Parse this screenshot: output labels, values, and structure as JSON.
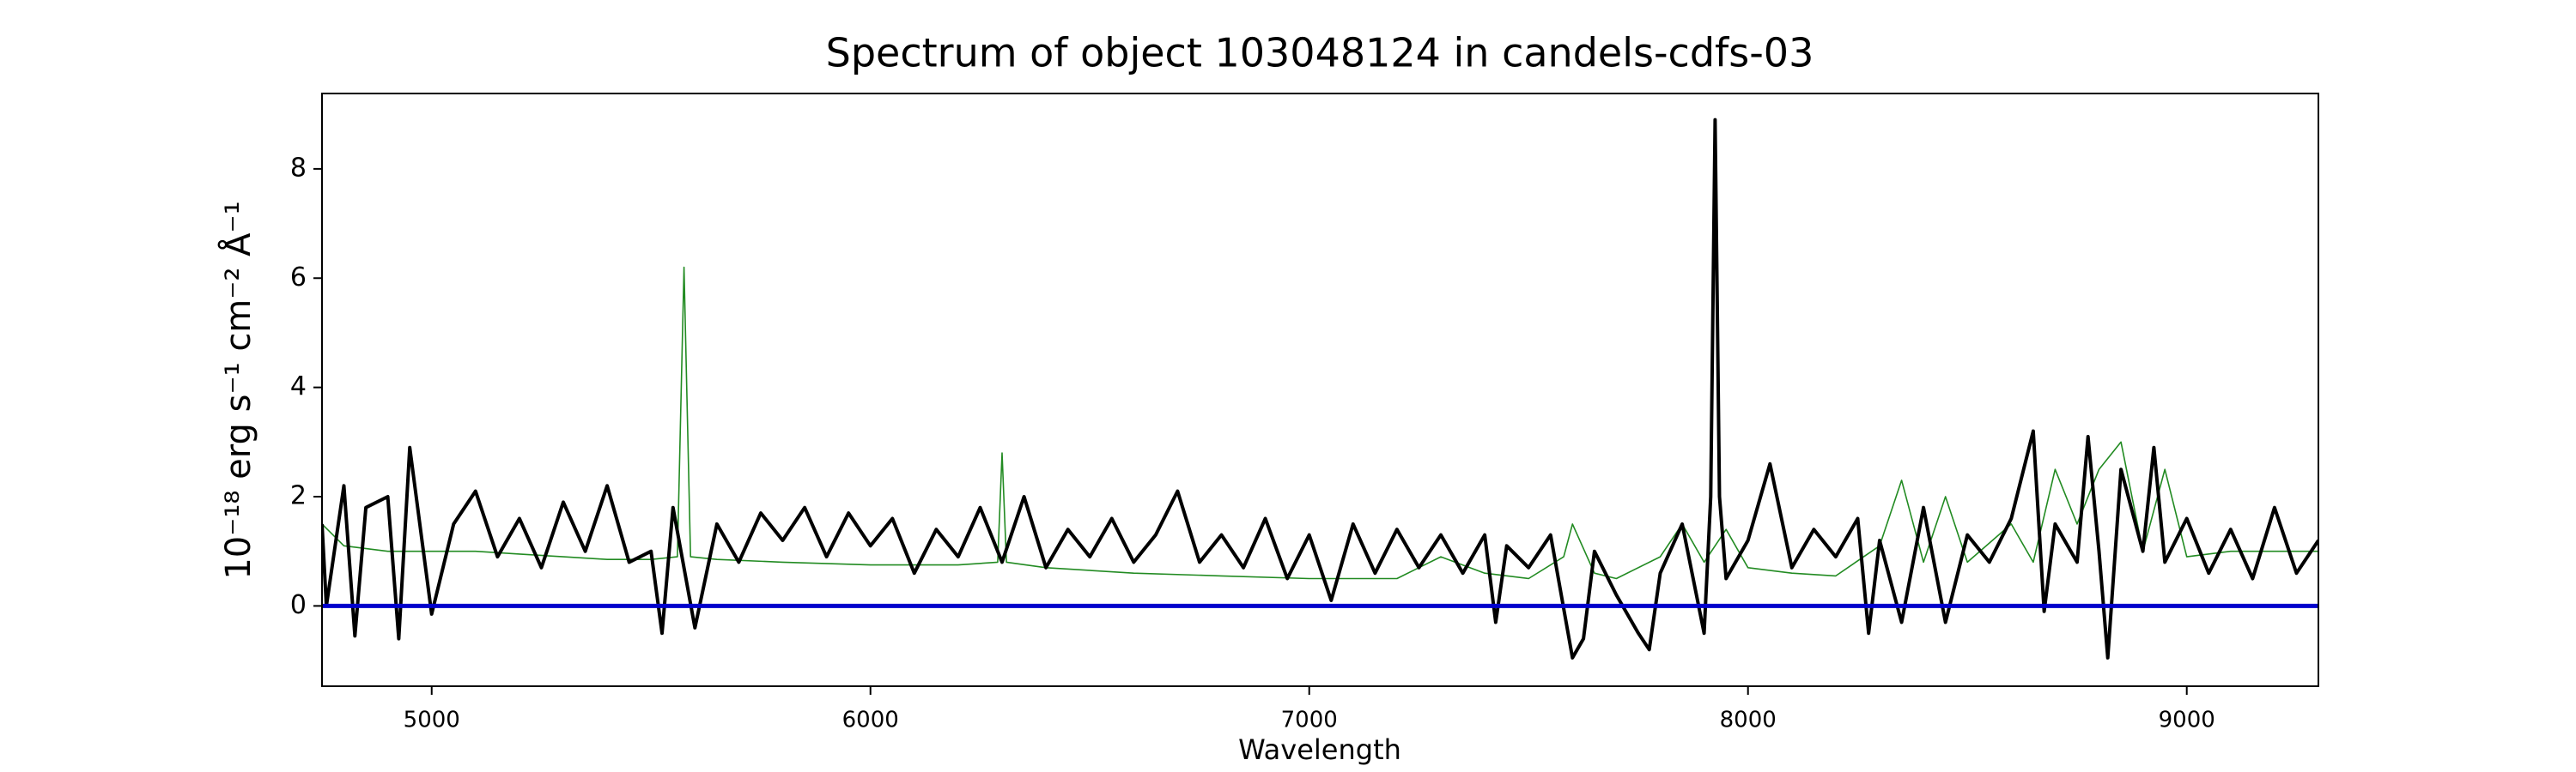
{
  "chart_data": {
    "type": "line",
    "title": "Spectrum of object 103048124 in candels-cdfs-03",
    "x_label": "Wavelength",
    "y_label": "10⁻¹⁸ erg s⁻¹ cm⁻² Å⁻¹",
    "xlim": [
      4750,
      9300
    ],
    "ylim": [
      -1.47,
      9.38
    ],
    "xticks": [
      5000,
      6000,
      7000,
      8000,
      9000
    ],
    "yticks": [
      0,
      2,
      4,
      6,
      8
    ],
    "series": [
      {
        "color": "#228b22",
        "width": 1.6,
        "x": [
          4750,
          4800,
          4900,
          5000,
          5100,
          5200,
          5300,
          5400,
          5500,
          5560,
          5575,
          5590,
          5650,
          5800,
          6000,
          6200,
          6290,
          6300,
          6310,
          6400,
          6600,
          6800,
          7000,
          7200,
          7300,
          7400,
          7500,
          7580,
          7600,
          7650,
          7700,
          7800,
          7850,
          7900,
          7950,
          8000,
          8100,
          8200,
          8300,
          8350,
          8400,
          8450,
          8500,
          8600,
          8650,
          8700,
          8750,
          8800,
          8850,
          8900,
          8950,
          9000,
          9100,
          9200,
          9300
        ],
        "values": [
          1.5,
          1.1,
          1.0,
          1.0,
          1.0,
          0.95,
          0.9,
          0.85,
          0.85,
          0.9,
          6.2,
          0.9,
          0.85,
          0.8,
          0.75,
          0.75,
          0.8,
          2.8,
          0.8,
          0.7,
          0.6,
          0.55,
          0.5,
          0.5,
          0.9,
          0.6,
          0.5,
          0.9,
          1.5,
          0.6,
          0.5,
          0.9,
          1.5,
          0.8,
          1.4,
          0.7,
          0.6,
          0.55,
          1.1,
          2.3,
          0.8,
          2.0,
          0.8,
          1.5,
          0.8,
          2.5,
          1.5,
          2.5,
          3.0,
          1.0,
          2.5,
          0.9,
          1.0,
          1.0,
          1.0
        ]
      },
      {
        "color": "#000000",
        "width": 4,
        "x": [
          4750,
          4760,
          4800,
          4825,
          4850,
          4900,
          4925,
          4950,
          5000,
          5050,
          5100,
          5150,
          5200,
          5250,
          5300,
          5350,
          5400,
          5450,
          5500,
          5525,
          5550,
          5600,
          5650,
          5700,
          5750,
          5800,
          5850,
          5900,
          5950,
          6000,
          6050,
          6100,
          6150,
          6200,
          6250,
          6300,
          6350,
          6400,
          6450,
          6500,
          6550,
          6600,
          6650,
          6700,
          6750,
          6800,
          6850,
          6900,
          6950,
          7000,
          7050,
          7100,
          7150,
          7200,
          7250,
          7300,
          7350,
          7400,
          7425,
          7450,
          7500,
          7550,
          7600,
          7625,
          7650,
          7700,
          7750,
          7775,
          7800,
          7850,
          7900,
          7915,
          7925,
          7935,
          7950,
          8000,
          8050,
          8100,
          8150,
          8200,
          8250,
          8275,
          8300,
          8350,
          8400,
          8450,
          8500,
          8550,
          8600,
          8650,
          8675,
          8700,
          8750,
          8775,
          8800,
          8820,
          8850,
          8900,
          8925,
          8950,
          9000,
          9050,
          9100,
          9150,
          9200,
          9250,
          9300
        ],
        "values": [
          1.5,
          0.0,
          2.2,
          -0.55,
          1.8,
          2.0,
          -0.6,
          2.9,
          -0.15,
          1.5,
          2.1,
          0.9,
          1.6,
          0.7,
          1.9,
          1.0,
          2.2,
          0.8,
          1.0,
          -0.5,
          1.8,
          -0.4,
          1.5,
          0.8,
          1.7,
          1.2,
          1.8,
          0.9,
          1.7,
          1.1,
          1.6,
          0.6,
          1.4,
          0.9,
          1.8,
          0.8,
          2.0,
          0.7,
          1.4,
          0.9,
          1.6,
          0.8,
          1.3,
          2.1,
          0.8,
          1.3,
          0.7,
          1.6,
          0.5,
          1.3,
          0.1,
          1.5,
          0.6,
          1.4,
          0.7,
          1.3,
          0.6,
          1.3,
          -0.3,
          1.1,
          0.7,
          1.3,
          -0.95,
          -0.6,
          1.0,
          0.2,
          -0.5,
          -0.8,
          0.6,
          1.5,
          -0.5,
          2.0,
          8.9,
          2.0,
          0.5,
          1.2,
          2.6,
          0.7,
          1.4,
          0.9,
          1.6,
          -0.5,
          1.2,
          -0.3,
          1.8,
          -0.3,
          1.3,
          0.8,
          1.6,
          3.2,
          -0.1,
          1.5,
          0.8,
          3.1,
          1.0,
          -0.95,
          2.5,
          1.0,
          2.9,
          0.8,
          1.6,
          0.6,
          1.4,
          0.5,
          1.8,
          0.6,
          1.2
        ]
      },
      {
        "color": "#0000cc",
        "width": 5,
        "x": [
          4750,
          9300
        ],
        "values": [
          0,
          0
        ]
      }
    ]
  }
}
